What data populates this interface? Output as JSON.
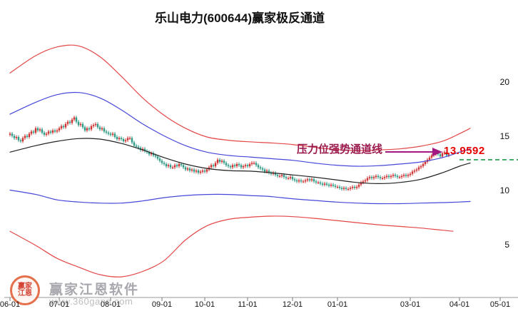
{
  "title": "乐山电力(600644)赢家极反通道",
  "annotation": {
    "label": "压力位强势通道线",
    "price_label": "13.9592"
  },
  "watermark": {
    "brand": "赢家江恩软件",
    "url": "www.360gann.com",
    "logo_text_1": "赢家",
    "logo_text_2": "江恩"
  },
  "colors": {
    "candle_up": "#cf3131",
    "candle_down": "#2f9b86",
    "line_red": "#e34747",
    "line_blue": "#4747d9",
    "line_black": "#222222",
    "annotation_text": "#9b1b4e",
    "arrow": "#a21880",
    "price_label": "#e60000",
    "dashed_level": "#1f9b4a",
    "axis": "#999999",
    "tick_text": "#111111",
    "watermark_text": "#9a9aa0",
    "watermark_url": "#b6b6ba",
    "logo_ring": "#e06038",
    "logo_text": "#d03020"
  },
  "axes": {
    "y_ticks": [
      {
        "label": "20",
        "price": 20
      },
      {
        "label": "15",
        "price": 15
      },
      {
        "label": "10",
        "price": 10
      },
      {
        "label": "5",
        "price": 5
      }
    ],
    "x_ticks": [
      {
        "label": "06-01",
        "idx": 0
      },
      {
        "label": "07-01",
        "idx": 23
      },
      {
        "label": "08-01",
        "idx": 47
      },
      {
        "label": "09-01",
        "idx": 71
      },
      {
        "label": "10-01",
        "idx": 91
      },
      {
        "label": "11-01",
        "idx": 111
      },
      {
        "label": "12-01",
        "idx": 132
      },
      {
        "label": "01-01",
        "idx": 153
      },
      {
        "label": "03-01",
        "idx": 187
      },
      {
        "label": "04-01",
        "idx": 210
      },
      {
        "label": "05-01",
        "idx": 229
      }
    ]
  },
  "chart_data": {
    "type": "candlestick",
    "title": "乐山电力(600644)赢家极反通道",
    "stock_name": "乐山电力",
    "stock_code": "600644",
    "ylim": [
      0,
      25
    ],
    "pressure_level": 13.9592,
    "level_line_price": 12.9,
    "first_open": 15.2,
    "closes": [
      15.3,
      15.1,
      14.9,
      15.0,
      14.7,
      14.6,
      14.9,
      15.1,
      15.0,
      15.3,
      15.5,
      15.4,
      15.8,
      15.6,
      15.7,
      15.4,
      15.2,
      15.3,
      15.5,
      15.4,
      15.6,
      15.5,
      15.6,
      15.8,
      16.0,
      15.9,
      16.2,
      16.4,
      16.3,
      16.6,
      16.8,
      16.4,
      16.1,
      16.2,
      15.9,
      15.6,
      15.8,
      15.7,
      16.0,
      16.1,
      16.2,
      15.9,
      15.7,
      15.8,
      15.5,
      15.4,
      15.3,
      15.2,
      15.3,
      15.0,
      14.8,
      14.9,
      14.8,
      14.6,
      14.7,
      14.9,
      14.9,
      14.5,
      14.2,
      14.1,
      14.0,
      13.8,
      13.9,
      13.7,
      13.6,
      13.4,
      13.5,
      13.3,
      13.2,
      13.0,
      12.8,
      12.6,
      12.5,
      12.3,
      12.4,
      12.2,
      12.2,
      12.4,
      12.3,
      12.5,
      12.4,
      12.2,
      12.0,
      12.1,
      11.9,
      12.0,
      11.8,
      11.9,
      11.7,
      11.8,
      11.9,
      11.8,
      12.0,
      12.2,
      12.4,
      12.3,
      12.6,
      12.9,
      12.7,
      12.8,
      12.6,
      12.4,
      12.3,
      12.2,
      12.4,
      12.3,
      12.5,
      12.4,
      12.2,
      12.3,
      12.4,
      12.3,
      12.5,
      12.6,
      12.6,
      12.4,
      12.2,
      12.1,
      12.0,
      11.8,
      11.9,
      11.7,
      11.6,
      11.7,
      11.5,
      11.4,
      11.4,
      11.5,
      11.3,
      11.2,
      11.2,
      11.3,
      11.1,
      11.0,
      10.9,
      11.0,
      10.9,
      10.9,
      11.0,
      11.1,
      11.0,
      11.1,
      10.9,
      10.8,
      10.8,
      10.7,
      10.6,
      10.7,
      10.6,
      10.5,
      10.6,
      10.5,
      10.4,
      10.4,
      10.3,
      10.2,
      10.3,
      10.2,
      10.2,
      10.3,
      10.4,
      10.3,
      10.4,
      10.6,
      10.8,
      10.9,
      11.0,
      11.2,
      11.3,
      11.2,
      11.3,
      11.4,
      11.3,
      11.2,
      11.2,
      11.3,
      11.4,
      11.3,
      11.4,
      11.5,
      11.4,
      11.3,
      11.3,
      11.4,
      11.5,
      11.4,
      11.5,
      11.6,
      11.8,
      11.9,
      12.0,
      12.2,
      12.3,
      12.5,
      12.7,
      12.9,
      13.1,
      13.3,
      13.4,
      13.6,
      13.4,
      13.2,
      13.5,
      13.6,
      13.3,
      13.4
    ],
    "channel_lines": [
      {
        "name": "outer-upper-red",
        "color": "#e34747",
        "points": [
          [
            0,
            20.9
          ],
          [
            12,
            22.5
          ],
          [
            22,
            23.3
          ],
          [
            32,
            23.4
          ],
          [
            42,
            22.4
          ],
          [
            52,
            20.6
          ],
          [
            62,
            18.6
          ],
          [
            72,
            17.0
          ],
          [
            82,
            15.8
          ],
          [
            92,
            15.0
          ],
          [
            102,
            14.7
          ],
          [
            112,
            14.55
          ],
          [
            122,
            14.45
          ],
          [
            132,
            14.3
          ],
          [
            142,
            14.05
          ],
          [
            152,
            13.85
          ],
          [
            162,
            13.75
          ],
          [
            172,
            13.8
          ],
          [
            182,
            13.9
          ],
          [
            192,
            14.15
          ],
          [
            202,
            14.6
          ],
          [
            210,
            15.3
          ],
          [
            215,
            15.8
          ]
        ]
      },
      {
        "name": "inner-upper-blue",
        "color": "#4747d9",
        "points": [
          [
            0,
            17.1
          ],
          [
            12,
            18.2
          ],
          [
            22,
            18.9
          ],
          [
            32,
            19.1
          ],
          [
            42,
            18.6
          ],
          [
            52,
            17.5
          ],
          [
            62,
            16.2
          ],
          [
            72,
            15.1
          ],
          [
            82,
            14.2
          ],
          [
            92,
            13.6
          ],
          [
            102,
            13.3
          ],
          [
            112,
            13.15
          ],
          [
            122,
            13.0
          ],
          [
            132,
            12.85
          ],
          [
            142,
            12.6
          ],
          [
            152,
            12.4
          ],
          [
            162,
            12.3
          ],
          [
            172,
            12.35
          ],
          [
            182,
            12.5
          ],
          [
            192,
            12.7
          ],
          [
            202,
            13.1
          ],
          [
            210,
            13.6
          ],
          [
            215,
            13.9
          ]
        ]
      },
      {
        "name": "middle-black",
        "color": "#222222",
        "points": [
          [
            0,
            13.6
          ],
          [
            12,
            14.2
          ],
          [
            22,
            14.6
          ],
          [
            32,
            14.85
          ],
          [
            42,
            14.8
          ],
          [
            52,
            14.4
          ],
          [
            62,
            13.8
          ],
          [
            72,
            13.1
          ],
          [
            82,
            12.5
          ],
          [
            92,
            12.1
          ],
          [
            102,
            11.9
          ],
          [
            112,
            11.85
          ],
          [
            122,
            11.7
          ],
          [
            132,
            11.5
          ],
          [
            142,
            11.3
          ],
          [
            152,
            11.05
          ],
          [
            162,
            10.8
          ],
          [
            172,
            10.7
          ],
          [
            182,
            10.8
          ],
          [
            192,
            11.1
          ],
          [
            202,
            11.7
          ],
          [
            210,
            12.3
          ],
          [
            215,
            12.6
          ]
        ]
      },
      {
        "name": "inner-lower-blue",
        "color": "#4747d9",
        "points": [
          [
            0,
            10.1
          ],
          [
            12,
            9.7
          ],
          [
            22,
            9.2
          ],
          [
            32,
            9.0
          ],
          [
            42,
            8.9
          ],
          [
            52,
            8.9
          ],
          [
            62,
            9.1
          ],
          [
            72,
            9.4
          ],
          [
            82,
            9.6
          ],
          [
            92,
            9.7
          ],
          [
            102,
            9.7
          ],
          [
            112,
            9.6
          ],
          [
            122,
            9.5
          ],
          [
            132,
            9.3
          ],
          [
            142,
            9.15
          ],
          [
            152,
            9.0
          ],
          [
            162,
            8.9
          ],
          [
            172,
            8.85
          ],
          [
            182,
            8.85
          ],
          [
            192,
            8.9
          ],
          [
            202,
            8.95
          ],
          [
            210,
            9.0
          ],
          [
            215,
            9.05
          ]
        ]
      },
      {
        "name": "outer-lower-red",
        "color": "#e34747",
        "points": [
          [
            0,
            6.3
          ],
          [
            12,
            5.0
          ],
          [
            22,
            3.8
          ],
          [
            32,
            3.0
          ],
          [
            42,
            2.3
          ],
          [
            52,
            2.1
          ],
          [
            62,
            2.6
          ],
          [
            72,
            3.6
          ],
          [
            82,
            5.5
          ],
          [
            92,
            6.8
          ],
          [
            102,
            7.4
          ],
          [
            112,
            7.6
          ],
          [
            122,
            7.7
          ],
          [
            132,
            7.65
          ],
          [
            142,
            7.5
          ],
          [
            152,
            7.3
          ],
          [
            162,
            7.1
          ],
          [
            172,
            6.9
          ],
          [
            182,
            6.75
          ],
          [
            192,
            6.6
          ],
          [
            202,
            6.4
          ],
          [
            207,
            6.3
          ]
        ]
      }
    ]
  }
}
